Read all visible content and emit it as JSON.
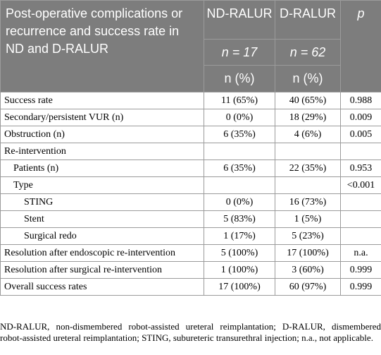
{
  "header": {
    "caption": "Post-operative complications or recurrence and success rate in ND and D-RALUR",
    "col_nd": "ND-RALUR",
    "col_d": "D-RALUR",
    "col_p": "p",
    "n_nd": "n = 17",
    "n_d": "n = 62",
    "unit_nd": "n (%)",
    "unit_d": "n (%)"
  },
  "rows": [
    {
      "label": "Success rate",
      "nd": "11 (65%)",
      "d": "40 (65%)",
      "p": "0.988"
    },
    {
      "label": "Secondary/persistent VUR (n)",
      "nd": "0 (0%)",
      "d": "18 (29%)",
      "p": "0.009"
    },
    {
      "label": "Obstruction (n)",
      "nd": "6 (35%)",
      "d": "4 (6%)",
      "p": "0.005"
    },
    {
      "label": "Re-intervention",
      "nd": "",
      "d": "",
      "p": ""
    },
    {
      "label": "Patients (n)",
      "nd": "6 (35%)",
      "d": "22 (35%)",
      "p": "0.953"
    },
    {
      "label": "Type",
      "nd": "",
      "d": "",
      "p": "<0.001"
    },
    {
      "label": "STING",
      "nd": "0 (0%)",
      "d": "16 (73%)",
      "p": ""
    },
    {
      "label": "Stent",
      "nd": "5 (83%)",
      "d": "1 (5%)",
      "p": ""
    },
    {
      "label": "Surgical redo",
      "nd": "1 (17%)",
      "d": "5 (23%)",
      "p": ""
    },
    {
      "label": "Resolution after endoscopic re-intervention",
      "nd": "5 (100%)",
      "d": "17 (100%)",
      "p": "n.a."
    },
    {
      "label": "Resolution after surgical re-intervention",
      "nd": "1 (100%)",
      "d": "3 (60%)",
      "p": "0.999"
    },
    {
      "label": "Overall success rates",
      "nd": "17 (100%)",
      "d": "60 (97%)",
      "p": "0.999"
    }
  ],
  "footnote": "ND-RALUR, non-dismembered robot-assisted ureteral reimplantation; D-RALUR, dismembered robot-assisted ureteral reimplantation; STING, subureteric transurethral injection; n.a., not applicable."
}
